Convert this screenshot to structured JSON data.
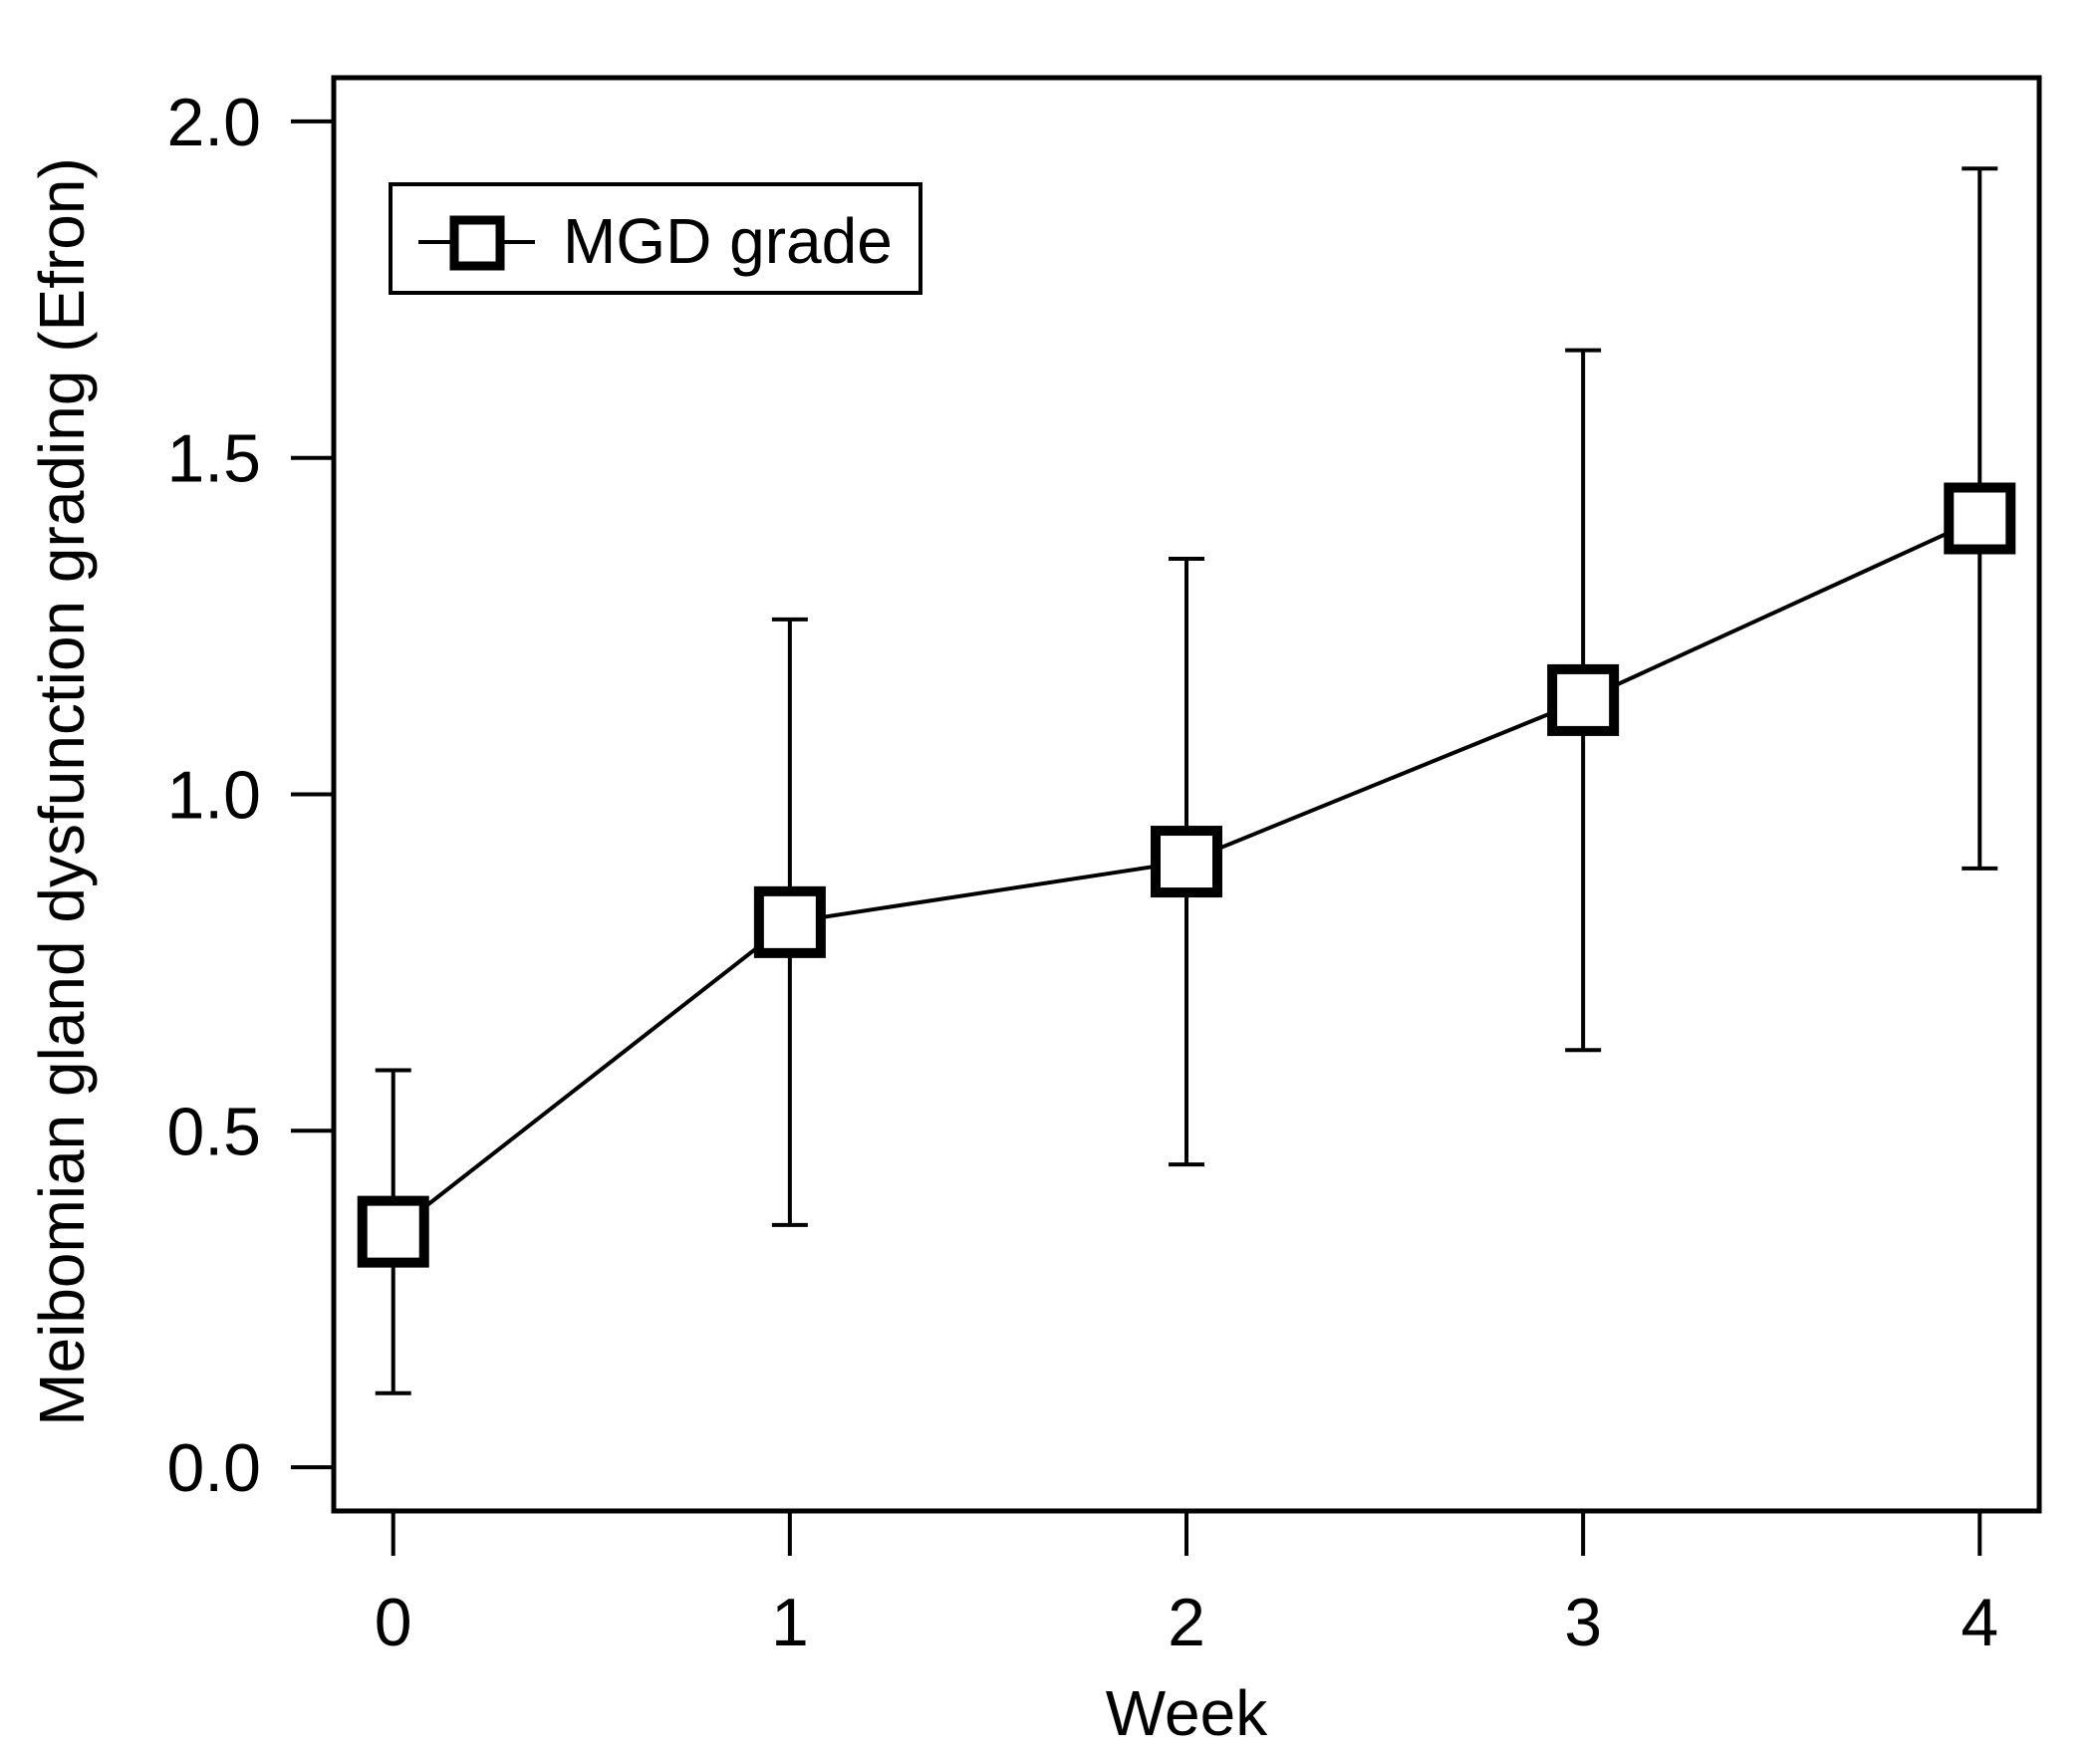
{
  "chart_data": {
    "type": "line",
    "title": "",
    "xlabel": "Week",
    "ylabel": "Meibomian gland dysfunction grading (Efron)",
    "x": [
      0,
      1,
      2,
      3,
      4
    ],
    "xlim": [
      -0.15,
      4.15
    ],
    "ylim": [
      -0.065,
      2.065
    ],
    "xticks": [
      0,
      1,
      2,
      3,
      4
    ],
    "xtick_labels": [
      "0",
      "1",
      "2",
      "3",
      "4"
    ],
    "yticks": [
      0.0,
      0.5,
      1.0,
      1.5,
      2.0
    ],
    "ytick_labels": [
      "0.0",
      "0.5",
      "1.0",
      "1.5",
      "2.0"
    ],
    "grid": false,
    "legend_position": "top-left",
    "series": [
      {
        "name": "MGD grade",
        "marker": "open-square",
        "color": "#000000",
        "values": [
          0.35,
          0.81,
          0.9,
          1.14,
          1.41
        ],
        "error_upper": [
          0.59,
          1.26,
          1.35,
          1.66,
          1.93
        ],
        "error_lower": [
          0.11,
          0.36,
          0.45,
          0.62,
          0.89
        ]
      }
    ]
  }
}
